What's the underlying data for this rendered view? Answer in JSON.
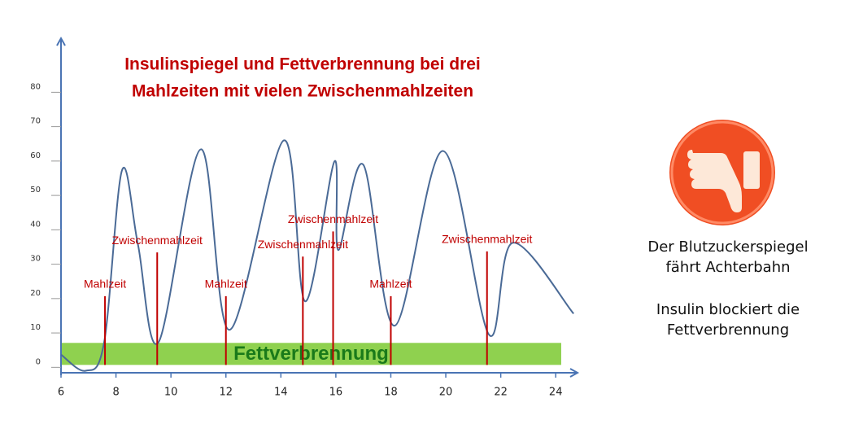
{
  "chart_data": {
    "type": "line",
    "title": [
      "Insulinspiegel und Fettverbrennung bei drei",
      "Mahlzeiten mit vielen Zwischenmahlzeiten"
    ],
    "x": [
      6,
      6.9,
      7.57,
      8.22,
      8.8,
      9.55,
      11.09,
      12.13,
      14.11,
      14.88,
      15.95,
      16.09,
      17.0,
      18.14,
      19.9,
      21.57,
      22.43,
      24.65
    ],
    "series": [
      {
        "color": "#4a6a96",
        "values": [
          3,
          -1.7,
          6.6,
          56.6,
          35,
          6.6,
          62.7,
          10.2,
          65.3,
          18.5,
          59.2,
          33.4,
          58.2,
          11.4,
          62.2,
          8.8,
          35.5,
          14.9
        ]
      }
    ],
    "xlim": [
      6,
      25
    ],
    "ylim": [
      -3,
      95
    ],
    "xticks": [
      6,
      8,
      10,
      12,
      14,
      16,
      18,
      20,
      22,
      24
    ],
    "yticks": [
      0,
      10,
      20,
      30,
      40,
      50,
      60,
      70,
      80
    ],
    "events": [
      {
        "label": "Mahlzeit",
        "x": 7.6,
        "height": 20
      },
      {
        "label": "Zwischenmahlzeit",
        "x": 9.5,
        "height": 32.7
      },
      {
        "label": "Mahlzeit",
        "x": 12.0,
        "height": 20
      },
      {
        "label": "Zwischenmahlzeit",
        "x": 14.8,
        "height": 31.5
      },
      {
        "label": "Zwischenmahlzeit",
        "x": 15.9,
        "height": 38.8
      },
      {
        "label": "Mahlzeit",
        "x": 18.0,
        "height": 20
      },
      {
        "label": "Zwischenmahlzeit",
        "x": 21.5,
        "height": 33
      }
    ],
    "event_color": "#c00000",
    "band": {
      "label": "Fettverbrennung",
      "x": [
        6,
        24.2
      ],
      "y": [
        0,
        6.4
      ],
      "color": "#8fd14f"
    }
  },
  "side_panel": {
    "text1": [
      "Der Blutzuckerspiegel",
      "fährt Achterbahn"
    ],
    "text2": [
      "Insulin blockiert die",
      "Fettverbrennung"
    ]
  }
}
